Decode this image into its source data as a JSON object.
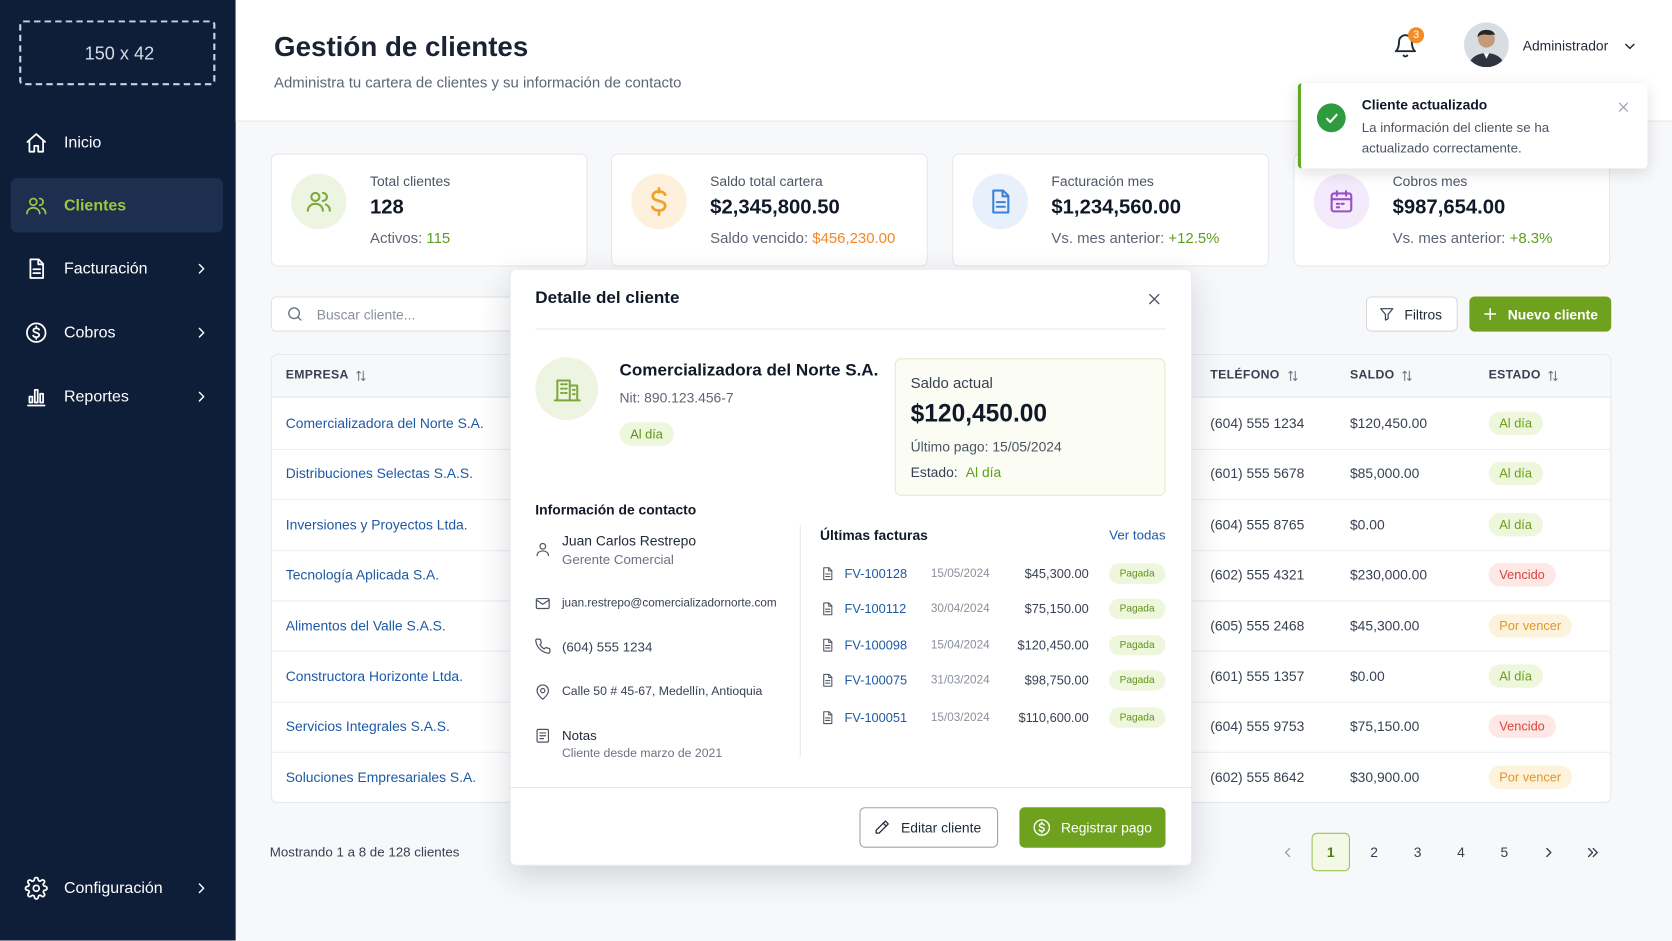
{
  "sidebar": {
    "logo": "150 x 42",
    "nav": [
      {
        "label": "Inicio",
        "active": false,
        "has_submenu": false
      },
      {
        "label": "Clientes",
        "active": true,
        "has_submenu": false
      },
      {
        "label": "Facturación",
        "active": false,
        "has_submenu": true
      },
      {
        "label": "Cobros",
        "active": false,
        "has_submenu": true
      },
      {
        "label": "Reportes",
        "active": false,
        "has_submenu": true
      }
    ],
    "settings": {
      "label": "Configuración",
      "has_submenu": true
    }
  },
  "header": {
    "title": "Gestión de clientes",
    "subtitle": "Administra tu cartera de clientes y su información de contacto",
    "notifications": 3,
    "user": "Administrador"
  },
  "toast": {
    "title": "Cliente actualizado",
    "message": "La información del cliente se ha actualizado correctamente."
  },
  "stats": [
    {
      "label": "Total clientes",
      "value": "128",
      "sub_label": "Activos:",
      "sub_value": "115",
      "sub_color": "#5f9e1f",
      "icon_bg": "#eef4e2",
      "icon_color": "#7aa83a"
    },
    {
      "label": "Saldo total cartera",
      "value": "$2,345,800.50",
      "sub_label": "Saldo vencido:",
      "sub_value": "$456,230.00",
      "sub_color": "#f0892a",
      "icon_bg": "#fdf1de",
      "icon_color": "#f2a229"
    },
    {
      "label": "Facturación mes",
      "value": "$1,234,560.00",
      "sub_label": "Vs. mes anterior:",
      "sub_value": "+12.5%",
      "sub_color": "#5f9e1f",
      "icon_bg": "#e7f0fb",
      "icon_color": "#3b82d6"
    },
    {
      "label": "Cobros mes",
      "value": "$987,654.00",
      "sub_label": "Vs. mes anterior:",
      "sub_value": "+8.3%",
      "sub_color": "#5f9e1f",
      "icon_bg": "#f3eafb",
      "icon_color": "#9b4dca"
    }
  ],
  "toolbar": {
    "search_placeholder": "Buscar cliente...",
    "filters": "Filtros",
    "new_client": "Nuevo cliente"
  },
  "table": {
    "columns": [
      "EMPRESA",
      "TELÉFONO",
      "SALDO",
      "ESTADO"
    ],
    "rows": [
      {
        "empresa": "Comercializadora del Norte S.A.",
        "telefono": "(604) 555 1234",
        "saldo": "$120,450.00",
        "estado": "Al día",
        "estado_color": "#6a9f1a",
        "estado_bg": "#eef6dc"
      },
      {
        "empresa": "Distribuciones Selectas S.A.S.",
        "telefono": "(601) 555 5678",
        "saldo": "$85,000.00",
        "estado": "Al día",
        "estado_color": "#6a9f1a",
        "estado_bg": "#eef6dc"
      },
      {
        "empresa": "Inversiones y Proyectos Ltda.",
        "telefono": "(604) 555 8765",
        "saldo": "$0.00",
        "estado": "Al día",
        "estado_color": "#6a9f1a",
        "estado_bg": "#eef6dc"
      },
      {
        "empresa": "Tecnología Aplicada S.A.",
        "telefono": "(602) 555 4321",
        "saldo": "$230,000.00",
        "estado": "Vencido",
        "estado_color": "#d9433b",
        "estado_bg": "#fde8e6"
      },
      {
        "empresa": "Alimentos del Valle S.A.S.",
        "telefono": "(605) 555 2468",
        "saldo": "$45,300.00",
        "estado": "Por vencer",
        "estado_color": "#e0962a",
        "estado_bg": "#fdf3dc"
      },
      {
        "empresa": "Constructora Horizonte Ltda.",
        "telefono": "(601) 555 1357",
        "saldo": "$0.00",
        "estado": "Al día",
        "estado_color": "#6a9f1a",
        "estado_bg": "#eef6dc"
      },
      {
        "empresa": "Servicios Integrales S.A.S.",
        "telefono": "(604) 555 9753",
        "saldo": "$75,150.00",
        "estado": "Vencido",
        "estado_color": "#d9433b",
        "estado_bg": "#fde8e6"
      },
      {
        "empresa": "Soluciones Empresariales S.A.",
        "telefono": "(602) 555 8642",
        "saldo": "$30,900.00",
        "estado": "Por vencer",
        "estado_color": "#e0962a",
        "estado_bg": "#fdf3dc"
      }
    ],
    "footer": "Mostrando 1 a 8 de 128 clientes",
    "pages": [
      1,
      2,
      3,
      4,
      5
    ],
    "current_page": 1
  },
  "modal": {
    "title": "Detalle del cliente",
    "company": {
      "name": "Comercializadora del Norte S.A.",
      "nit": "Nit: 890.123.456-7",
      "status": "Al día"
    },
    "balance": {
      "label": "Saldo actual",
      "value": "$120,450.00",
      "last_payment": "Último pago: 15/05/2024",
      "status_label": "Estado:",
      "status": "Al día"
    },
    "contact": {
      "title": "Información de contacto",
      "name": "Juan Carlos Restrepo",
      "role": "Gerente Comercial",
      "email": "juan.restrepo@comercializadornorte.com",
      "phone": "(604) 555 1234",
      "address": "Calle 50 # 45-67, Medellín, Antioquia",
      "notes_label": "Notas",
      "notes": "Cliente desde marzo de 2021"
    },
    "invoices": {
      "title": "Últimas facturas",
      "see_all": "Ver todas",
      "rows": [
        {
          "id": "FV-100128",
          "date": "15/05/2024",
          "amount": "$45,300.00",
          "status": "Pagada"
        },
        {
          "id": "FV-100112",
          "date": "30/04/2024",
          "amount": "$75,150.00",
          "status": "Pagada"
        },
        {
          "id": "FV-100098",
          "date": "15/04/2024",
          "amount": "$120,450.00",
          "status": "Pagada"
        },
        {
          "id": "FV-100075",
          "date": "31/03/2024",
          "amount": "$98,750.00",
          "status": "Pagada"
        },
        {
          "id": "FV-100051",
          "date": "15/03/2024",
          "amount": "$110,600.00",
          "status": "Pagada"
        }
      ]
    },
    "actions": {
      "edit": "Editar cliente",
      "pay": "Registrar pago"
    }
  }
}
